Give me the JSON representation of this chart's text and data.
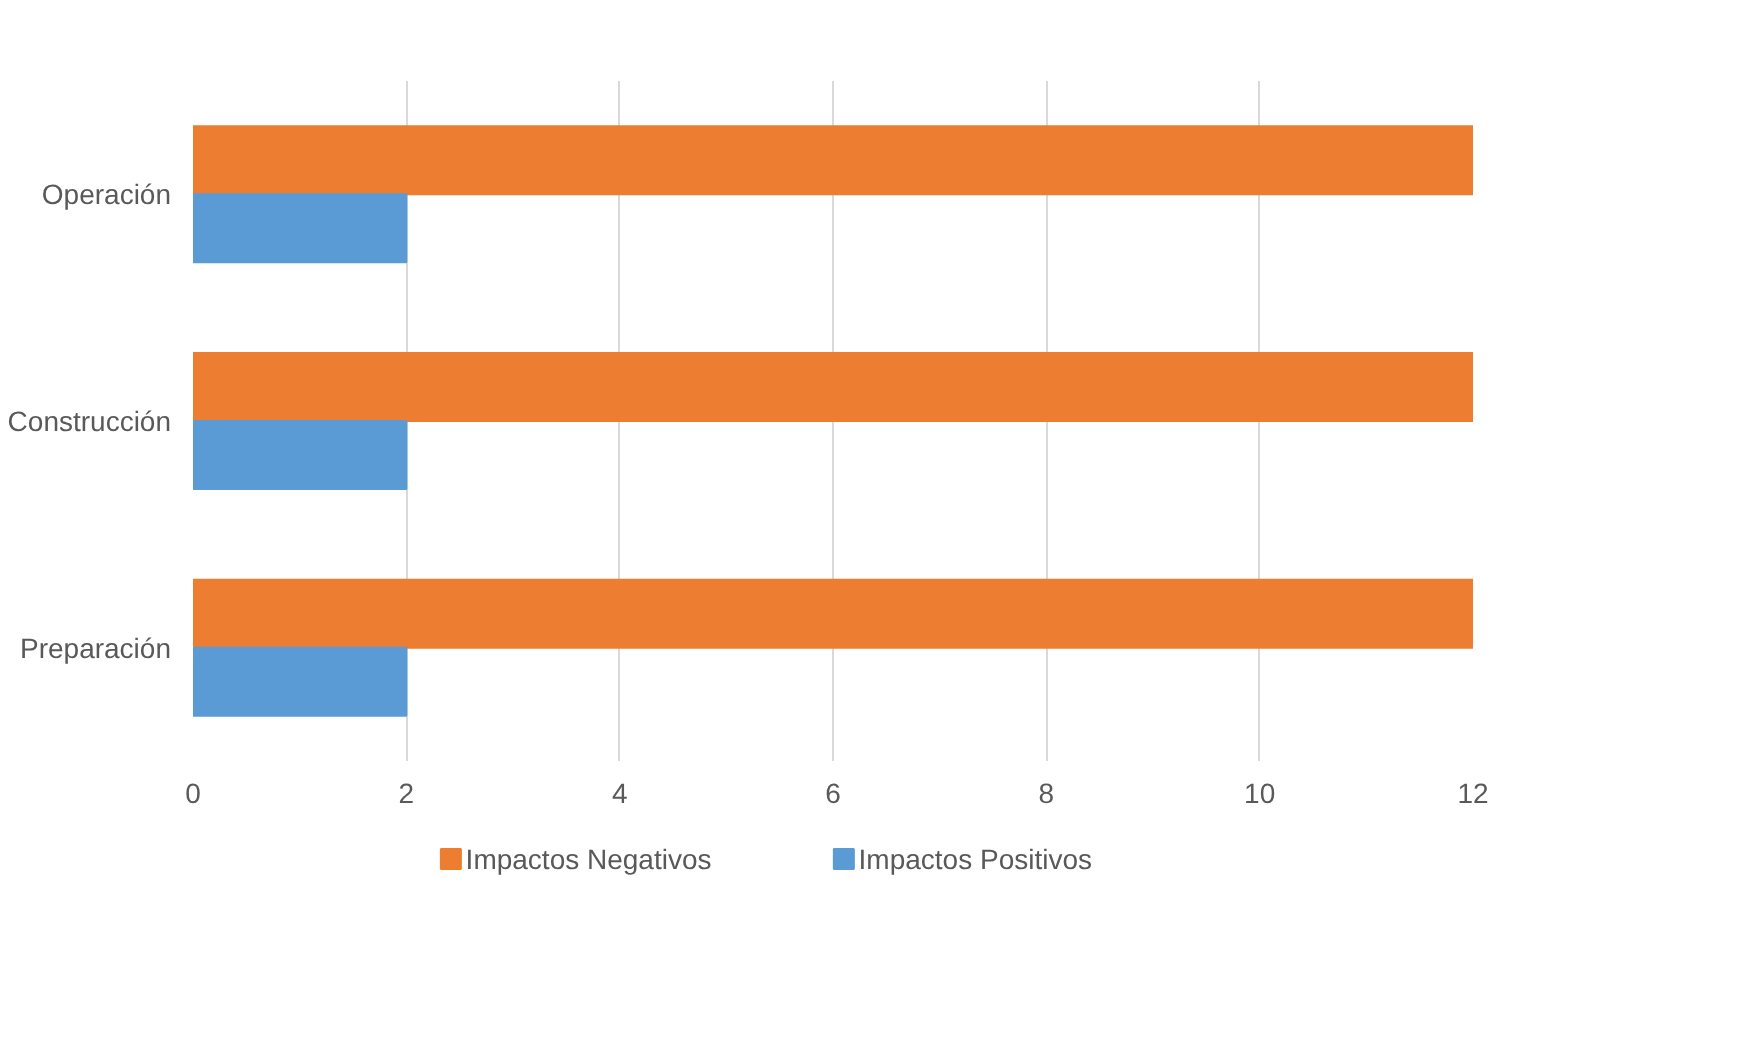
{
  "chart_data": {
    "type": "bar",
    "orientation": "horizontal",
    "categories": [
      "Operación",
      "Construcción",
      "Preparación"
    ],
    "series": [
      {
        "name": "Impactos Negativos",
        "color": "#ed7d31",
        "values": [
          12,
          12,
          12
        ]
      },
      {
        "name": "Impactos Positivos",
        "color": "#5b9bd5",
        "values": [
          2,
          2,
          2
        ]
      }
    ],
    "xlim": [
      0,
      12
    ],
    "xticks": [
      0,
      2,
      4,
      6,
      8,
      10,
      12
    ],
    "grid": "x",
    "legend": "bottom"
  }
}
